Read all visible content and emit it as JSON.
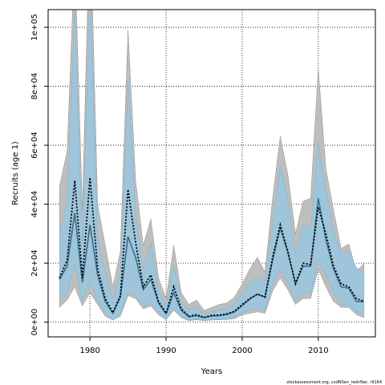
{
  "chart_data": {
    "type": "area",
    "xlabel": "Years",
    "ylabel": "Recruits (age 1)",
    "xlim": [
      1974.5,
      2017.5
    ],
    "ylim": [
      -5000,
      106000
    ],
    "x_ticks": [
      1980,
      1990,
      2000,
      2010
    ],
    "x_tick_labels": [
      "1980",
      "1990",
      "2000",
      "2010"
    ],
    "y_ticks": [
      0,
      20000,
      40000,
      60000,
      80000,
      100000
    ],
    "y_tick_labels": [
      "0e+00",
      "2e+04",
      "4e+04",
      "6e+04",
      "8e+04",
      "1e+05"
    ],
    "grid": "dotted",
    "footer": "stockassessment.org, codNSen_restrNar, r9164",
    "colors": {
      "outer_band": "#bebebe",
      "inner_band": "#9cc5db",
      "estimate": "#000000",
      "median_line": "#3a6f8a"
    },
    "x": [
      1976,
      1977,
      1978,
      1979,
      1980,
      1981,
      1982,
      1983,
      1984,
      1985,
      1986,
      1987,
      1988,
      1989,
      1990,
      1991,
      1992,
      1993,
      1994,
      1995,
      1996,
      1997,
      1998,
      1999,
      2000,
      2001,
      2002,
      2003,
      2004,
      2005,
      2006,
      2007,
      2008,
      2009,
      2010,
      2011,
      2012,
      2013,
      2014,
      2015,
      2016
    ],
    "series": [
      {
        "name": "",
        "role": "outer_upper",
        "values": [
          46000,
          58000,
          125000,
          38000,
          140000,
          40000,
          26000,
          12000,
          24000,
          99000,
          48000,
          26000,
          35000,
          15000,
          8000,
          26000,
          10000,
          6000,
          7500,
          4000,
          5000,
          6000,
          6500,
          8500,
          13000,
          18000,
          22000,
          17000,
          42000,
          63000,
          50000,
          30000,
          41000,
          42000,
          86000,
          52000,
          38000,
          25000,
          26500,
          17000,
          20000
        ]
      },
      {
        "name": "",
        "role": "inner_upper",
        "values": [
          31000,
          41000,
          106000,
          26000,
          115000,
          28000,
          17000,
          8000,
          17000,
          82000,
          37000,
          18000,
          27000,
          10500,
          5500,
          19500,
          7000,
          4200,
          5200,
          2900,
          3500,
          4300,
          4700,
          6200,
          10000,
          13500,
          15000,
          14000,
          34000,
          53000,
          42000,
          23000,
          33000,
          32000,
          61000,
          45000,
          31000,
          23500,
          24000,
          18500,
          17000
        ]
      },
      {
        "name": "",
        "role": "estimate",
        "values": [
          15000,
          21000,
          48000,
          15000,
          49000,
          18000,
          8000,
          3200,
          9000,
          45000,
          27000,
          12000,
          16000,
          7000,
          3000,
          12000,
          4500,
          2000,
          2500,
          1600,
          2300,
          2400,
          2800,
          3700,
          6000,
          8000,
          9500,
          8500,
          22000,
          33000,
          24000,
          13000,
          20000,
          19500,
          39000,
          30000,
          19000,
          13000,
          12000,
          8000,
          7000
        ]
      },
      {
        "name": "",
        "role": "median",
        "values": [
          14500,
          19000,
          37000,
          13500,
          33000,
          16000,
          7000,
          3000,
          8500,
          29000,
          22000,
          11000,
          14500,
          6500,
          2800,
          10000,
          4000,
          1800,
          2200,
          1500,
          2100,
          2200,
          2600,
          3500,
          5600,
          7800,
          9500,
          8500,
          21000,
          32000,
          23500,
          13000,
          19000,
          19000,
          42000,
          28000,
          18000,
          12000,
          11500,
          7000,
          7000
        ]
      },
      {
        "name": "",
        "role": "inner_lower",
        "values": [
          7500,
          9500,
          20000,
          7000,
          14000,
          7500,
          3000,
          1000,
          3000,
          10000,
          9000,
          5000,
          6500,
          3000,
          1000,
          5000,
          2000,
          700,
          1000,
          600,
          900,
          1000,
          1200,
          1700,
          3000,
          4000,
          4500,
          4000,
          13000,
          18000,
          13000,
          7000,
          10000,
          10000,
          21000,
          16000,
          10000,
          6000,
          5800,
          3500,
          2500
        ]
      },
      {
        "name": "",
        "role": "outer_lower",
        "values": [
          5000,
          7500,
          12000,
          5500,
          10000,
          6000,
          2000,
          700,
          2000,
          9000,
          8000,
          4500,
          5500,
          2500,
          800,
          4000,
          1500,
          500,
          800,
          500,
          700,
          800,
          900,
          1200,
          2500,
          3000,
          3500,
          3000,
          10500,
          15000,
          11000,
          6000,
          8000,
          8000,
          18000,
          12000,
          7000,
          5000,
          5000,
          2500,
          1500
        ]
      }
    ]
  }
}
